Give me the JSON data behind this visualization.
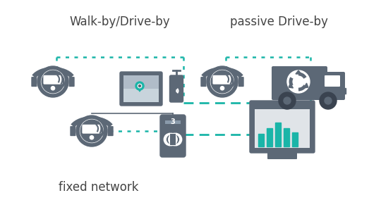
{
  "bg_color": "#ffffff",
  "line_color": "#1ab5a8",
  "icon_color": "#5c6876",
  "text_color": "#555555",
  "title_walkby": "Walk-by/Drive-by",
  "title_passive": "passive Drive-by",
  "title_fixed": "fixed network",
  "figsize": [
    5.4,
    3.01
  ],
  "dpi": 100
}
